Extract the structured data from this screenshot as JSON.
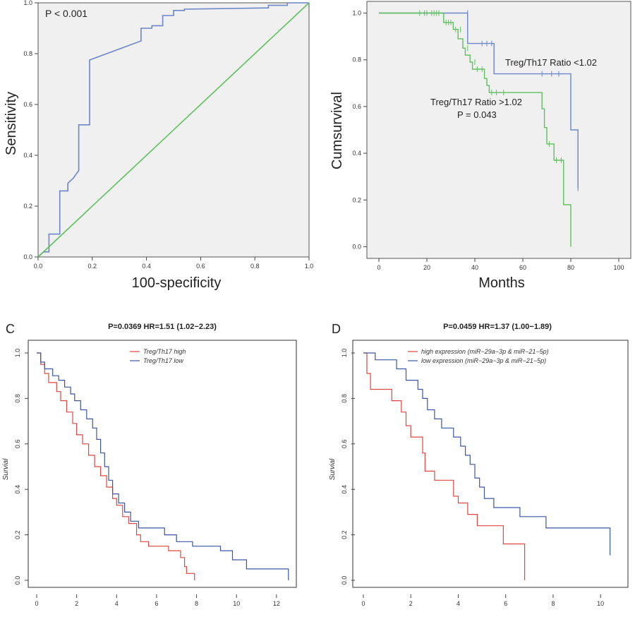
{
  "chart_data": [
    {
      "type": "line",
      "panel": "",
      "title": "",
      "xlabel": "100-specificity",
      "ylabel": "Sensitivity",
      "xlim": [
        0,
        1
      ],
      "ylim": [
        0,
        1
      ],
      "xticks": [
        "0.0",
        "0.2",
        "0.4",
        "0.6",
        "0.8",
        "1.0"
      ],
      "yticks": [
        "0.0",
        "0.2",
        "0.4",
        "0.6",
        "0.8",
        "1.0"
      ],
      "annotation": "P < 0.001",
      "grid": false,
      "background": "#f0f0f0",
      "series": [
        {
          "color": "#6b86c9",
          "points": [
            [
              0,
              0
            ],
            [
              0.01,
              0.01
            ],
            [
              0.02,
              0.02
            ],
            [
              0.04,
              0.02
            ],
            [
              0.04,
              0.09
            ],
            [
              0.08,
              0.09
            ],
            [
              0.08,
              0.26
            ],
            [
              0.11,
              0.26
            ],
            [
              0.11,
              0.29
            ],
            [
              0.13,
              0.31
            ],
            [
              0.15,
              0.34
            ],
            [
              0.15,
              0.52
            ],
            [
              0.19,
              0.52
            ],
            [
              0.19,
              0.775
            ],
            [
              0.38,
              0.85
            ],
            [
              0.38,
              0.9
            ],
            [
              0.42,
              0.9
            ],
            [
              0.42,
              0.91
            ],
            [
              0.46,
              0.91
            ],
            [
              0.46,
              0.95
            ],
            [
              0.5,
              0.95
            ],
            [
              0.5,
              0.97
            ],
            [
              0.54,
              0.97
            ],
            [
              0.54,
              0.975
            ],
            [
              0.85,
              0.98
            ],
            [
              0.85,
              0.99
            ],
            [
              0.92,
              0.99
            ],
            [
              0.92,
              1.0
            ],
            [
              1.0,
              1.0
            ]
          ]
        },
        {
          "color": "#5ec05e",
          "points": [
            [
              0,
              0
            ],
            [
              1,
              1
            ]
          ]
        }
      ]
    },
    {
      "type": "line",
      "panel": "",
      "title": "",
      "xlabel": "Months",
      "ylabel": "Cumsurvival",
      "xlim": [
        -5,
        105
      ],
      "ylim": [
        -0.05,
        1.05
      ],
      "xticks": [
        "0",
        "20",
        "40",
        "60",
        "80",
        "100"
      ],
      "yticks": [
        "0.0",
        "0.2",
        "0.4",
        "0.6",
        "0.8",
        "1.0"
      ],
      "annotations": [
        "Treg/Th17 Ratio <1.02",
        "Treg/Th17 Ratio >1.02",
        "P = 0.043"
      ],
      "grid": false,
      "background": "#f0f0f0",
      "series": [
        {
          "color": "#6b86c9",
          "steps": [
            [
              0,
              1.0
            ],
            [
              37,
              1.0
            ],
            [
              37,
              0.87
            ],
            [
              48,
              0.87
            ],
            [
              48,
              0.74
            ],
            [
              80,
              0.74
            ],
            [
              80,
              0.5
            ],
            [
              83,
              0.5
            ],
            [
              83,
              0.25
            ]
          ],
          "censor": [
            [
              37,
              1.0
            ],
            [
              43,
              0.87
            ],
            [
              45,
              0.87
            ],
            [
              47,
              0.87
            ],
            [
              68,
              0.74
            ],
            [
              72,
              0.74
            ],
            [
              75,
              0.74
            ],
            [
              83,
              0.25
            ]
          ]
        },
        {
          "color": "#5ec05e",
          "steps": [
            [
              0,
              1.0
            ],
            [
              27,
              1.0
            ],
            [
              27,
              0.96
            ],
            [
              31,
              0.96
            ],
            [
              31,
              0.93
            ],
            [
              33,
              0.93
            ],
            [
              33,
              0.89
            ],
            [
              35,
              0.89
            ],
            [
              35,
              0.85
            ],
            [
              36,
              0.85
            ],
            [
              36,
              0.82
            ],
            [
              38,
              0.82
            ],
            [
              38,
              0.79
            ],
            [
              39,
              0.79
            ],
            [
              39,
              0.76
            ],
            [
              44,
              0.76
            ],
            [
              44,
              0.72
            ],
            [
              45,
              0.72
            ],
            [
              45,
              0.69
            ],
            [
              46,
              0.69
            ],
            [
              46,
              0.66
            ],
            [
              68,
              0.66
            ],
            [
              68,
              0.59
            ],
            [
              69,
              0.59
            ],
            [
              69,
              0.51
            ],
            [
              70,
              0.51
            ],
            [
              70,
              0.44
            ],
            [
              73,
              0.44
            ],
            [
              73,
              0.37
            ],
            [
              77,
              0.37
            ],
            [
              77,
              0.18
            ],
            [
              80,
              0.18
            ],
            [
              80,
              0.0
            ]
          ],
          "censor": [
            [
              17,
              1.0
            ],
            [
              19,
              1.0
            ],
            [
              20,
              1.0
            ],
            [
              22,
              1.0
            ],
            [
              23,
              1.0
            ],
            [
              24,
              1.0
            ],
            [
              25,
              1.0
            ],
            [
              28,
              0.96
            ],
            [
              29,
              0.96
            ],
            [
              30,
              0.96
            ],
            [
              32,
              0.93
            ],
            [
              34,
              0.93
            ],
            [
              37,
              0.85
            ],
            [
              40,
              0.79
            ],
            [
              41,
              0.76
            ],
            [
              43,
              0.76
            ],
            [
              47,
              0.66
            ],
            [
              49,
              0.66
            ],
            [
              52,
              0.66
            ],
            [
              71,
              0.44
            ],
            [
              74,
              0.37
            ],
            [
              76,
              0.37
            ]
          ]
        }
      ]
    },
    {
      "type": "line",
      "panel": "C",
      "title": "P=0.0369 HR=1.51 (1.02−2.23)",
      "xlabel": "",
      "ylabel": "Survial",
      "xlim": [
        0,
        12.5
      ],
      "ylim": [
        0,
        1
      ],
      "xticks": [
        "0",
        "2",
        "4",
        "6",
        "8",
        "10",
        "12"
      ],
      "yticks": [
        "0.0",
        "0.2",
        "0.4",
        "0.6",
        "0.8",
        "1.0"
      ],
      "legend_position": "top-center",
      "grid": false,
      "series": [
        {
          "name": "Treg/Th17 high",
          "color": "#e0463f",
          "steps": [
            [
              0,
              1.0
            ],
            [
              0.2,
              0.95
            ],
            [
              0.4,
              0.91
            ],
            [
              0.6,
              0.87
            ],
            [
              1.0,
              0.83
            ],
            [
              1.2,
              0.79
            ],
            [
              1.5,
              0.74
            ],
            [
              1.8,
              0.69
            ],
            [
              2.0,
              0.64
            ],
            [
              2.3,
              0.6
            ],
            [
              2.6,
              0.55
            ],
            [
              2.9,
              0.5
            ],
            [
              3.2,
              0.46
            ],
            [
              3.5,
              0.41
            ],
            [
              3.8,
              0.36
            ],
            [
              4.0,
              0.33
            ],
            [
              4.3,
              0.28
            ],
            [
              4.6,
              0.25
            ],
            [
              5.0,
              0.2
            ],
            [
              5.2,
              0.17
            ],
            [
              5.6,
              0.15
            ],
            [
              6.6,
              0.13
            ],
            [
              7.2,
              0.1
            ],
            [
              7.4,
              0.06
            ],
            [
              7.5,
              0.03
            ],
            [
              7.9,
              0.0
            ]
          ]
        },
        {
          "name": "Treg/Th17 low",
          "color": "#3b56a3",
          "steps": [
            [
              0,
              1.0
            ],
            [
              0.2,
              0.96
            ],
            [
              0.4,
              0.93
            ],
            [
              0.8,
              0.9
            ],
            [
              1.1,
              0.88
            ],
            [
              1.4,
              0.85
            ],
            [
              1.7,
              0.82
            ],
            [
              1.9,
              0.79
            ],
            [
              2.2,
              0.75
            ],
            [
              2.5,
              0.71
            ],
            [
              2.8,
              0.67
            ],
            [
              3.0,
              0.62
            ],
            [
              3.2,
              0.56
            ],
            [
              3.4,
              0.5
            ],
            [
              3.6,
              0.44
            ],
            [
              3.8,
              0.38
            ],
            [
              4.1,
              0.34
            ],
            [
              4.4,
              0.3
            ],
            [
              4.7,
              0.26
            ],
            [
              5.1,
              0.23
            ],
            [
              6.4,
              0.2
            ],
            [
              7.0,
              0.17
            ],
            [
              7.8,
              0.15
            ],
            [
              9.2,
              0.13
            ],
            [
              9.8,
              0.09
            ],
            [
              10.5,
              0.05
            ],
            [
              12.6,
              0.0
            ]
          ]
        }
      ]
    },
    {
      "type": "line",
      "panel": "D",
      "title": "P=0.0459 HR=1.37 (1.00−1.89)",
      "xlabel": "",
      "ylabel": "Survial",
      "xlim": [
        0,
        10.5
      ],
      "ylim": [
        0,
        1
      ],
      "xticks": [
        "0",
        "2",
        "4",
        "6",
        "8",
        "10"
      ],
      "yticks": [
        "0.0",
        "0.2",
        "0.4",
        "0.6",
        "0.8",
        "1.0"
      ],
      "legend_position": "top-center",
      "grid": false,
      "series": [
        {
          "name": "high expression (miR−29a−3p & miR−21−5p)",
          "color": "#e0463f",
          "steps": [
            [
              0,
              1.0
            ],
            [
              0.15,
              0.91
            ],
            [
              0.3,
              0.84
            ],
            [
              1.2,
              0.79
            ],
            [
              1.6,
              0.74
            ],
            [
              1.8,
              0.68
            ],
            [
              2.0,
              0.63
            ],
            [
              2.5,
              0.56
            ],
            [
              2.6,
              0.48
            ],
            [
              3.0,
              0.44
            ],
            [
              3.8,
              0.37
            ],
            [
              4.0,
              0.34
            ],
            [
              4.4,
              0.29
            ],
            [
              4.8,
              0.24
            ],
            [
              5.9,
              0.16
            ],
            [
              6.8,
              0.0
            ]
          ]
        },
        {
          "name": "low expression (miR−29a−3p & miR−21−5p)",
          "color": "#3b56a3",
          "steps": [
            [
              0,
              1.0
            ],
            [
              0.5,
              0.97
            ],
            [
              1.4,
              0.93
            ],
            [
              1.8,
              0.88
            ],
            [
              2.3,
              0.84
            ],
            [
              2.5,
              0.8
            ],
            [
              2.7,
              0.75
            ],
            [
              3.0,
              0.71
            ],
            [
              3.3,
              0.67
            ],
            [
              3.8,
              0.63
            ],
            [
              4.1,
              0.59
            ],
            [
              4.3,
              0.55
            ],
            [
              4.5,
              0.51
            ],
            [
              4.7,
              0.45
            ],
            [
              4.9,
              0.41
            ],
            [
              5.1,
              0.36
            ],
            [
              5.5,
              0.32
            ],
            [
              6.6,
              0.28
            ],
            [
              7.7,
              0.23
            ],
            [
              10.4,
              0.11
            ]
          ]
        }
      ]
    }
  ]
}
